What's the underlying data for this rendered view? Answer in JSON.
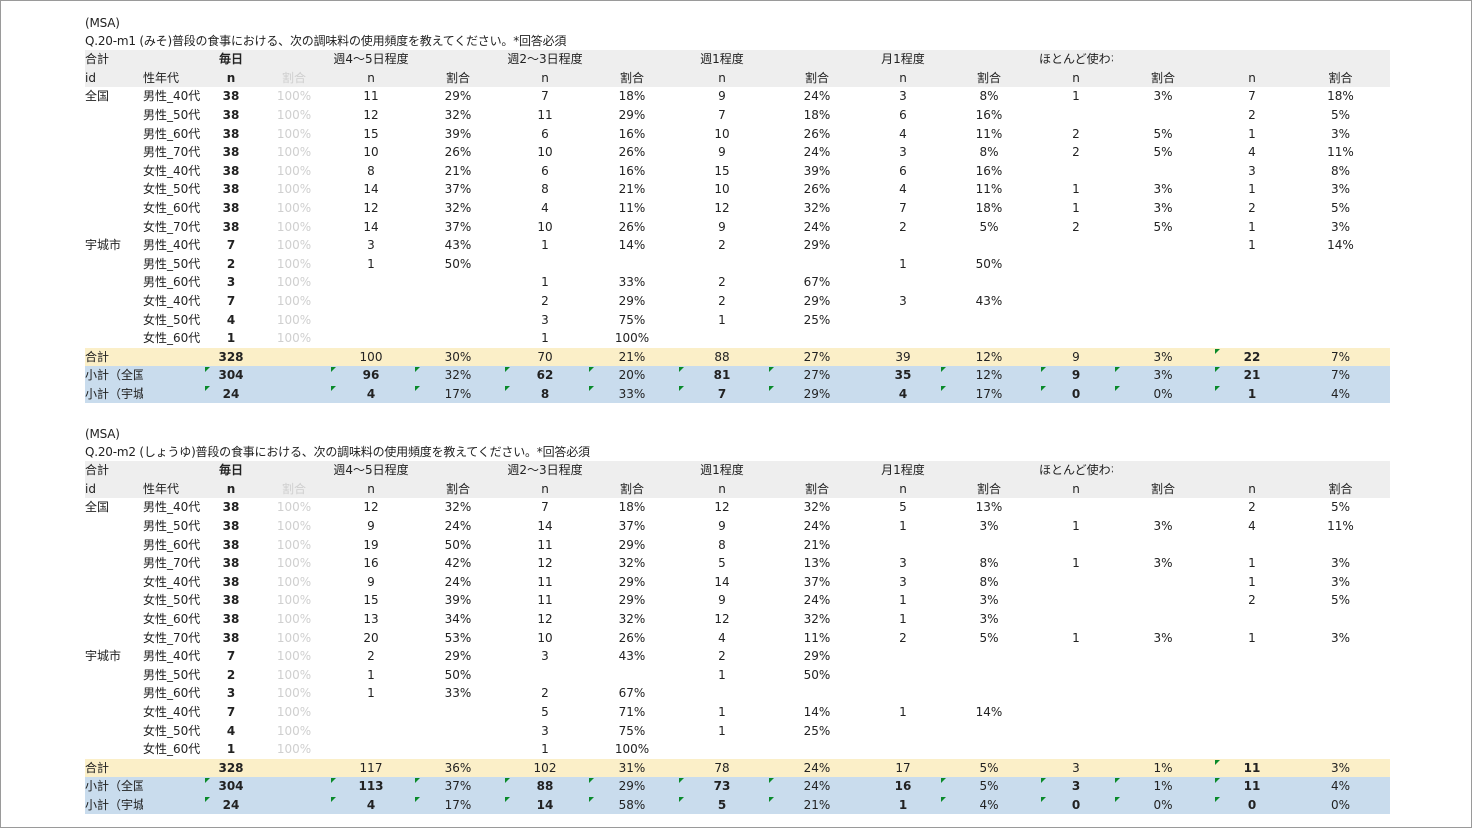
{
  "blocks": [
    {
      "msa": "(MSA)",
      "question": "Q.20-m1 (みそ)普段の食事における、次の調味料の使用頻度を教えてください。*回答必須",
      "header1": [
        "合計",
        "",
        "毎日",
        "",
        "週4～5日程度",
        "",
        "週2～3日程度",
        "",
        "週1程度",
        "",
        "月1程度",
        "",
        "ほとんど使わない",
        "",
        "",
        ""
      ],
      "header2": [
        "id",
        "性年代",
        "n",
        "割合",
        "n",
        "割合",
        "n",
        "割合",
        "n",
        "割合",
        "n",
        "割合",
        "n",
        "割合",
        "n",
        "割合"
      ],
      "rows": [
        [
          "全国",
          "男性_40代",
          "38",
          "100%",
          "11",
          "29%",
          "7",
          "18%",
          "9",
          "24%",
          "3",
          "8%",
          "1",
          "3%",
          "7",
          "18%"
        ],
        [
          "",
          "男性_50代",
          "38",
          "100%",
          "12",
          "32%",
          "11",
          "29%",
          "7",
          "18%",
          "6",
          "16%",
          "",
          "",
          "2",
          "5%"
        ],
        [
          "",
          "男性_60代",
          "38",
          "100%",
          "15",
          "39%",
          "6",
          "16%",
          "10",
          "26%",
          "4",
          "11%",
          "2",
          "5%",
          "1",
          "3%"
        ],
        [
          "",
          "男性_70代",
          "38",
          "100%",
          "10",
          "26%",
          "10",
          "26%",
          "9",
          "24%",
          "3",
          "8%",
          "2",
          "5%",
          "4",
          "11%"
        ],
        [
          "",
          "女性_40代",
          "38",
          "100%",
          "8",
          "21%",
          "6",
          "16%",
          "15",
          "39%",
          "6",
          "16%",
          "",
          "",
          "3",
          "8%"
        ],
        [
          "",
          "女性_50代",
          "38",
          "100%",
          "14",
          "37%",
          "8",
          "21%",
          "10",
          "26%",
          "4",
          "11%",
          "1",
          "3%",
          "1",
          "3%"
        ],
        [
          "",
          "女性_60代",
          "38",
          "100%",
          "12",
          "32%",
          "4",
          "11%",
          "12",
          "32%",
          "7",
          "18%",
          "1",
          "3%",
          "2",
          "5%"
        ],
        [
          "",
          "女性_70代",
          "38",
          "100%",
          "14",
          "37%",
          "10",
          "26%",
          "9",
          "24%",
          "2",
          "5%",
          "2",
          "5%",
          "1",
          "3%"
        ],
        [
          "宇城市",
          "男性_40代",
          "7",
          "100%",
          "3",
          "43%",
          "1",
          "14%",
          "2",
          "29%",
          "",
          "",
          "",
          "",
          "1",
          "14%"
        ],
        [
          "",
          "男性_50代",
          "2",
          "100%",
          "1",
          "50%",
          "",
          "",
          "",
          "",
          "1",
          "50%",
          "",
          "",
          "",
          ""
        ],
        [
          "",
          "男性_60代",
          "3",
          "100%",
          "",
          "",
          "1",
          "33%",
          "2",
          "67%",
          "",
          "",
          "",
          "",
          "",
          ""
        ],
        [
          "",
          "女性_40代",
          "7",
          "100%",
          "",
          "",
          "2",
          "29%",
          "2",
          "29%",
          "3",
          "43%",
          "",
          "",
          "",
          ""
        ],
        [
          "",
          "女性_50代",
          "4",
          "100%",
          "",
          "",
          "3",
          "75%",
          "1",
          "25%",
          "",
          "",
          "",
          "",
          "",
          ""
        ],
        [
          "",
          "女性_60代",
          "1",
          "100%",
          "",
          "",
          "1",
          "100%",
          "",
          "",
          "",
          "",
          "",
          "",
          "",
          ""
        ]
      ],
      "total": [
        "合計",
        "",
        "328",
        "",
        "100",
        "30%",
        "70",
        "21%",
        "88",
        "27%",
        "39",
        "12%",
        "9",
        "3%",
        "22",
        "7%"
      ],
      "sub1": [
        "小計（全国）",
        "",
        "304",
        "",
        "96",
        "32%",
        "62",
        "20%",
        "81",
        "27%",
        "35",
        "12%",
        "9",
        "3%",
        "21",
        "7%"
      ],
      "sub2": [
        "小計（宇城市）",
        "",
        "24",
        "",
        "4",
        "17%",
        "8",
        "33%",
        "7",
        "29%",
        "4",
        "17%",
        "0",
        "0%",
        "1",
        "4%"
      ]
    },
    {
      "msa": "(MSA)",
      "question": "Q.20-m2 (しょうゆ)普段の食事における、次の調味料の使用頻度を教えてください。*回答必須",
      "header1": [
        "合計",
        "",
        "毎日",
        "",
        "週4～5日程度",
        "",
        "週2～3日程度",
        "",
        "週1程度",
        "",
        "月1程度",
        "",
        "ほとんど使わない",
        "",
        "",
        ""
      ],
      "header2": [
        "id",
        "性年代",
        "n",
        "割合",
        "n",
        "割合",
        "n",
        "割合",
        "n",
        "割合",
        "n",
        "割合",
        "n",
        "割合",
        "n",
        "割合"
      ],
      "rows": [
        [
          "全国",
          "男性_40代",
          "38",
          "100%",
          "12",
          "32%",
          "7",
          "18%",
          "12",
          "32%",
          "5",
          "13%",
          "",
          "",
          "2",
          "5%"
        ],
        [
          "",
          "男性_50代",
          "38",
          "100%",
          "9",
          "24%",
          "14",
          "37%",
          "9",
          "24%",
          "1",
          "3%",
          "1",
          "3%",
          "4",
          "11%"
        ],
        [
          "",
          "男性_60代",
          "38",
          "100%",
          "19",
          "50%",
          "11",
          "29%",
          "8",
          "21%",
          "",
          "",
          "",
          "",
          "",
          ""
        ],
        [
          "",
          "男性_70代",
          "38",
          "100%",
          "16",
          "42%",
          "12",
          "32%",
          "5",
          "13%",
          "3",
          "8%",
          "1",
          "3%",
          "1",
          "3%"
        ],
        [
          "",
          "女性_40代",
          "38",
          "100%",
          "9",
          "24%",
          "11",
          "29%",
          "14",
          "37%",
          "3",
          "8%",
          "",
          "",
          "1",
          "3%"
        ],
        [
          "",
          "女性_50代",
          "38",
          "100%",
          "15",
          "39%",
          "11",
          "29%",
          "9",
          "24%",
          "1",
          "3%",
          "",
          "",
          "2",
          "5%"
        ],
        [
          "",
          "女性_60代",
          "38",
          "100%",
          "13",
          "34%",
          "12",
          "32%",
          "12",
          "32%",
          "1",
          "3%",
          "",
          "",
          "",
          ""
        ],
        [
          "",
          "女性_70代",
          "38",
          "100%",
          "20",
          "53%",
          "10",
          "26%",
          "4",
          "11%",
          "2",
          "5%",
          "1",
          "3%",
          "1",
          "3%"
        ],
        [
          "宇城市",
          "男性_40代",
          "7",
          "100%",
          "2",
          "29%",
          "3",
          "43%",
          "2",
          "29%",
          "",
          "",
          "",
          "",
          "",
          ""
        ],
        [
          "",
          "男性_50代",
          "2",
          "100%",
          "1",
          "50%",
          "",
          "",
          "1",
          "50%",
          "",
          "",
          "",
          "",
          "",
          ""
        ],
        [
          "",
          "男性_60代",
          "3",
          "100%",
          "1",
          "33%",
          "2",
          "67%",
          "",
          "",
          "",
          "",
          "",
          "",
          "",
          ""
        ],
        [
          "",
          "女性_40代",
          "7",
          "100%",
          "",
          "",
          "5",
          "71%",
          "1",
          "14%",
          "1",
          "14%",
          "",
          "",
          "",
          ""
        ],
        [
          "",
          "女性_50代",
          "4",
          "100%",
          "",
          "",
          "3",
          "75%",
          "1",
          "25%",
          "",
          "",
          "",
          "",
          "",
          ""
        ],
        [
          "",
          "女性_60代",
          "1",
          "100%",
          "",
          "",
          "1",
          "100%",
          "",
          "",
          "",
          "",
          "",
          "",
          "",
          ""
        ]
      ],
      "total": [
        "合計",
        "",
        "328",
        "",
        "117",
        "36%",
        "102",
        "31%",
        "78",
        "24%",
        "17",
        "5%",
        "3",
        "1%",
        "11",
        "3%"
      ],
      "sub1": [
        "小計（全国）",
        "",
        "304",
        "",
        "113",
        "37%",
        "88",
        "29%",
        "73",
        "24%",
        "16",
        "5%",
        "3",
        "1%",
        "11",
        "4%"
      ],
      "sub2": [
        "小計（宇城市）",
        "",
        "24",
        "",
        "4",
        "17%",
        "14",
        "58%",
        "5",
        "21%",
        "1",
        "4%",
        "0",
        "0%",
        "0",
        "0%"
      ]
    }
  ],
  "colors": {
    "header": "#eeeeee",
    "total": "#fbefc8",
    "subtotal": "#c9dced",
    "flag": "#0a8a2a",
    "ghost": "#cfcfcf"
  }
}
